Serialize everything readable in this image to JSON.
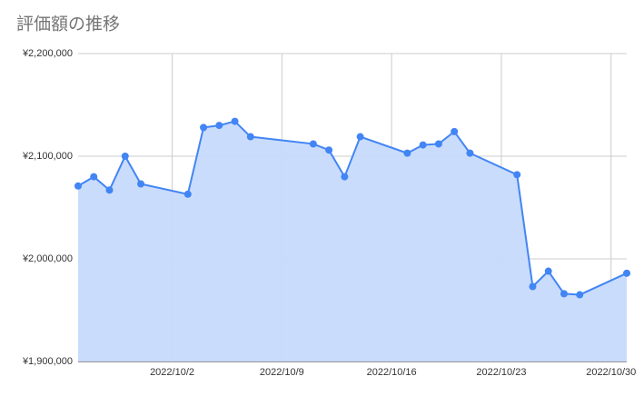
{
  "chart_data": {
    "type": "area",
    "title": "評価額の推移",
    "x": [
      "2022/9/26",
      "2022/9/27",
      "2022/9/28",
      "2022/9/29",
      "2022/9/30",
      "2022/10/3",
      "2022/10/4",
      "2022/10/5",
      "2022/10/6",
      "2022/10/7",
      "2022/10/11",
      "2022/10/12",
      "2022/10/13",
      "2022/10/14",
      "2022/10/17",
      "2022/10/18",
      "2022/10/19",
      "2022/10/20",
      "2022/10/21",
      "2022/10/24",
      "2022/10/25",
      "2022/10/26",
      "2022/10/27",
      "2022/10/28",
      "2022/10/31"
    ],
    "series": [
      {
        "color": "#4285f4",
        "values": [
          2071000,
          2080000,
          2067000,
          2100000,
          2073000,
          2063000,
          2128000,
          2130000,
          2134000,
          2119000,
          2112000,
          2106000,
          2080000,
          2119000,
          2103000,
          2111000,
          2112000,
          2124000,
          2103000,
          2082000,
          1973000,
          1988000,
          1966000,
          1965000,
          1986000
        ]
      }
    ],
    "xlim": [
      "2022/9/26",
      "2022/10/31"
    ],
    "xticks": [
      "2022/10/2",
      "2022/10/9",
      "2022/10/16",
      "2022/10/23",
      "2022/10/30"
    ],
    "ylim": [
      1900000,
      2200000
    ],
    "yticks": [
      {
        "value": 1900000,
        "label": "¥1,900,000"
      },
      {
        "value": 2000000,
        "label": "¥2,000,000"
      },
      {
        "value": 2100000,
        "label": "¥2,100,000"
      },
      {
        "value": 2200000,
        "label": "¥2,200,000"
      }
    ],
    "grid": true,
    "area_color": "#c6dafc"
  }
}
